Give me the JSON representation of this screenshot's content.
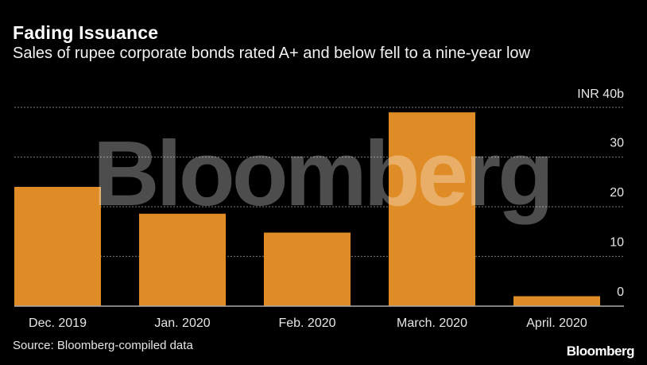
{
  "header": {
    "title": "Fading Issuance",
    "subtitle": "Sales of rupee corporate bonds rated A+ and below fell to a nine-year low"
  },
  "footer": {
    "source": "Source: Bloomberg-compiled data",
    "logo": "Bloomberg"
  },
  "watermark": "Bloomberg",
  "colors": {
    "bar": "#e08c26",
    "background": "#000000",
    "grid": "#666666"
  },
  "chart_data": {
    "type": "bar",
    "title": "Fading Issuance",
    "categories": [
      "Dec. 2019",
      "Jan. 2020",
      "Feb. 2020",
      "March. 2020",
      "April. 2020"
    ],
    "values": [
      24,
      18.6,
      14.8,
      39,
      2
    ],
    "ylabel": "INR billions",
    "ylim": [
      0,
      40
    ],
    "yticks": [
      0,
      10,
      20,
      30,
      40
    ],
    "ytick_labels": [
      "0",
      "10",
      "20",
      "30",
      "INR 40b"
    ],
    "grid": true,
    "y_axis_position": "right"
  }
}
